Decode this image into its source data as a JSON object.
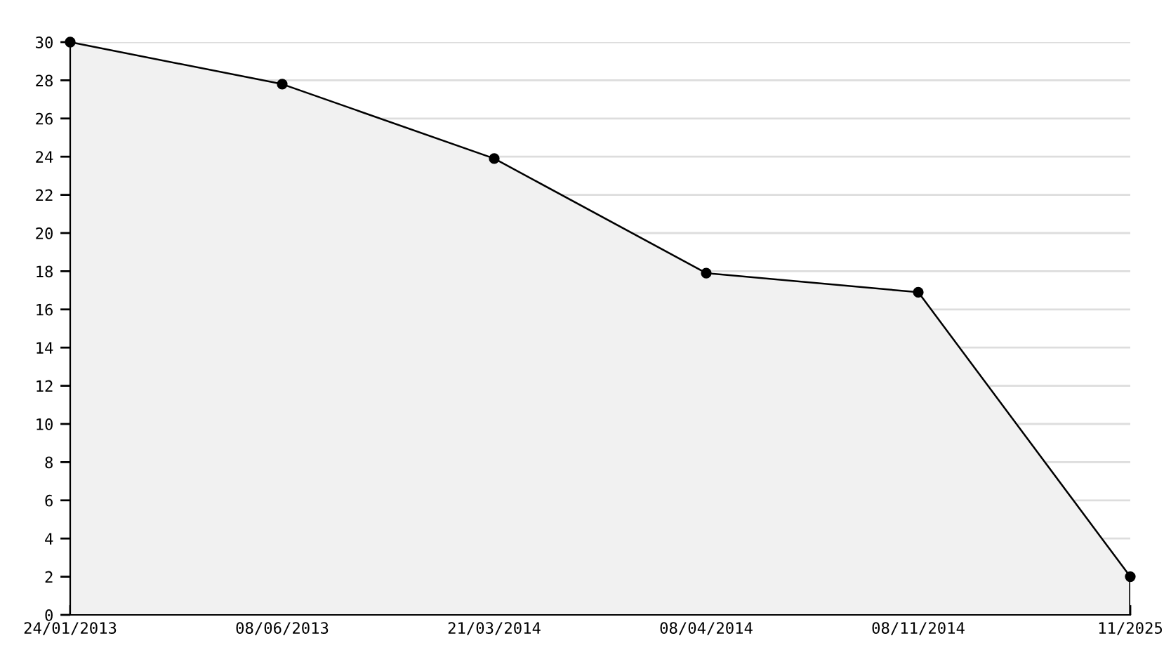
{
  "chart_data": {
    "type": "area",
    "categories": [
      "24/01/2013",
      "08/06/2013",
      "21/03/2014",
      "08/04/2014",
      "08/11/2014",
      "11/2025"
    ],
    "series": [
      {
        "color": "#000000",
        "values": [
          30,
          27.8,
          23.9,
          17.9,
          16.9,
          2
        ]
      }
    ],
    "ylim": [
      0,
      30
    ],
    "yticks": [
      0,
      2,
      4,
      6,
      8,
      10,
      12,
      14,
      16,
      18,
      20,
      22,
      24,
      26,
      28,
      30
    ],
    "grid": "y",
    "marker": "circle",
    "line_style": "solid"
  }
}
